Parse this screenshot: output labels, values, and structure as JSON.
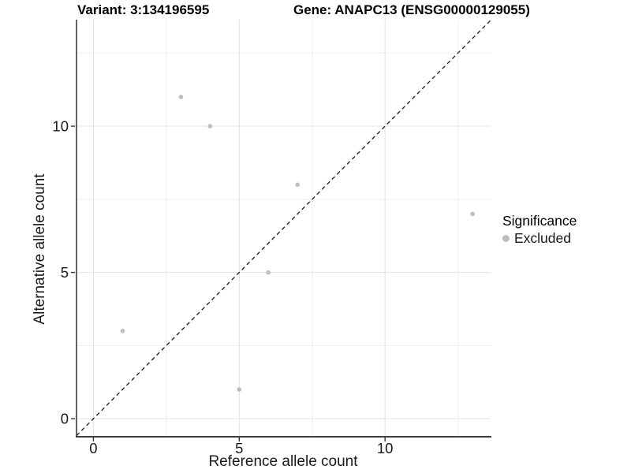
{
  "chart_data": {
    "type": "scatter",
    "title_left": "Variant: 3:134196595",
    "title_right": "Gene: ANAPC13 (ENSG00000129055)",
    "xlabel": "Reference allele count",
    "ylabel": "Alternative allele count",
    "xlim": [
      -0.58,
      13.62
    ],
    "ylim": [
      -0.59,
      13.64
    ],
    "x_ticks": [
      0,
      5,
      10
    ],
    "y_ticks": [
      0,
      5,
      10
    ],
    "x_minor_ticks": [
      2.5,
      7.5,
      12.5
    ],
    "y_minor_ticks": [
      2.5,
      7.5,
      12.5
    ],
    "grid": "major+minor",
    "identity_line": {
      "type": "y=x",
      "style": "dashed",
      "color": "#1a1a1a"
    },
    "series": [
      {
        "name": "Excluded",
        "color": "#bebebe",
        "points": [
          [
            1,
            3
          ],
          [
            3,
            11
          ],
          [
            4,
            10
          ],
          [
            5,
            1
          ],
          [
            6,
            5
          ],
          [
            7,
            8
          ],
          [
            13,
            7
          ]
        ]
      }
    ],
    "legend": {
      "title": "Significance",
      "position": "right",
      "items": [
        {
          "label": "Excluded",
          "color": "#bebebe"
        }
      ]
    }
  }
}
